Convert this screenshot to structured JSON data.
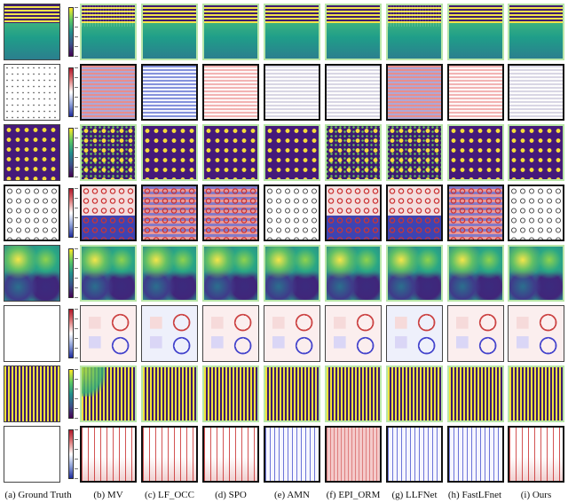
{
  "figure": {
    "captions": [
      "(a) Ground Truth",
      "(b) MV",
      "(c) LF_OCC",
      "(d) SPO",
      "(e) AMN",
      "(f) EPI_ORM",
      "(g) LLFNet",
      "(h) FastLFnet",
      "(i) Ours"
    ],
    "colors": {
      "viridis_low": "#440154",
      "viridis_high": "#fde725",
      "error_negative": "#1f2c9e",
      "error_positive": "#b2182b",
      "highlight_frame": "#b9e6a8"
    }
  }
}
